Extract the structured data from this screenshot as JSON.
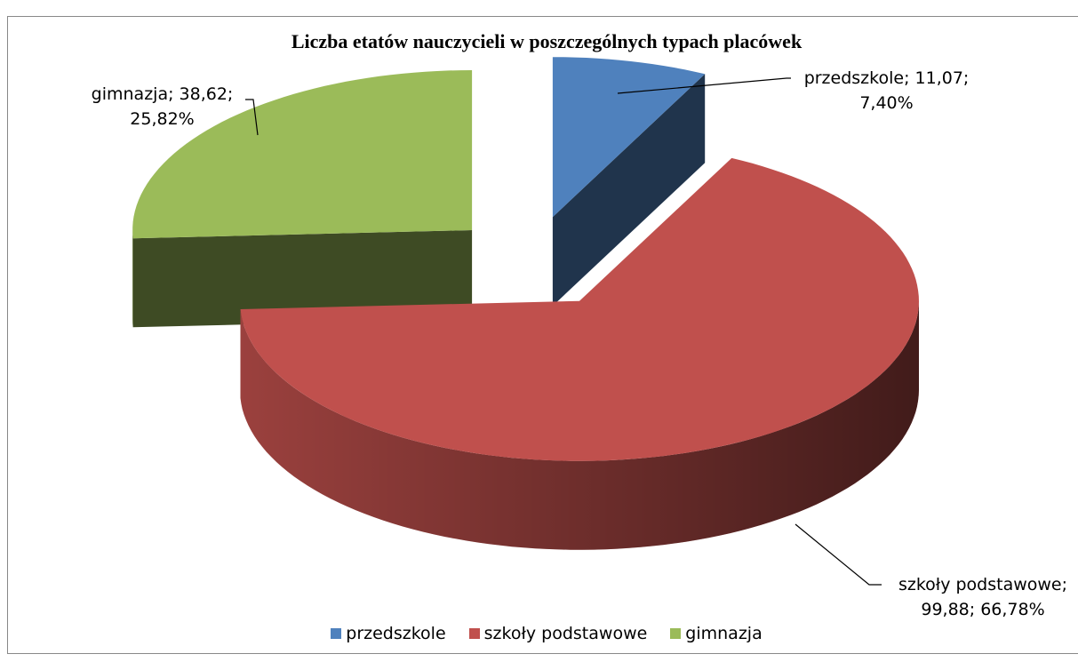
{
  "chart_data": {
    "type": "pie",
    "title": "Liczba etatów nauczycieli w poszczególnych typach placówek",
    "categories": [
      "przedszkole",
      "szkoły podstawowe",
      "gimnazja"
    ],
    "values": [
      11.07,
      99.88,
      38.62
    ],
    "value_labels": [
      "przedszkole; 11,07; 7,40%",
      "szkoły podstawowe; 99,88; 66,78%",
      "gimnazja; 38,62; 25,82%"
    ],
    "colors": [
      "#4f81bd",
      "#c0504d",
      "#9bbb59"
    ],
    "legend": "bottom",
    "exploded": true,
    "three_d": true
  }
}
